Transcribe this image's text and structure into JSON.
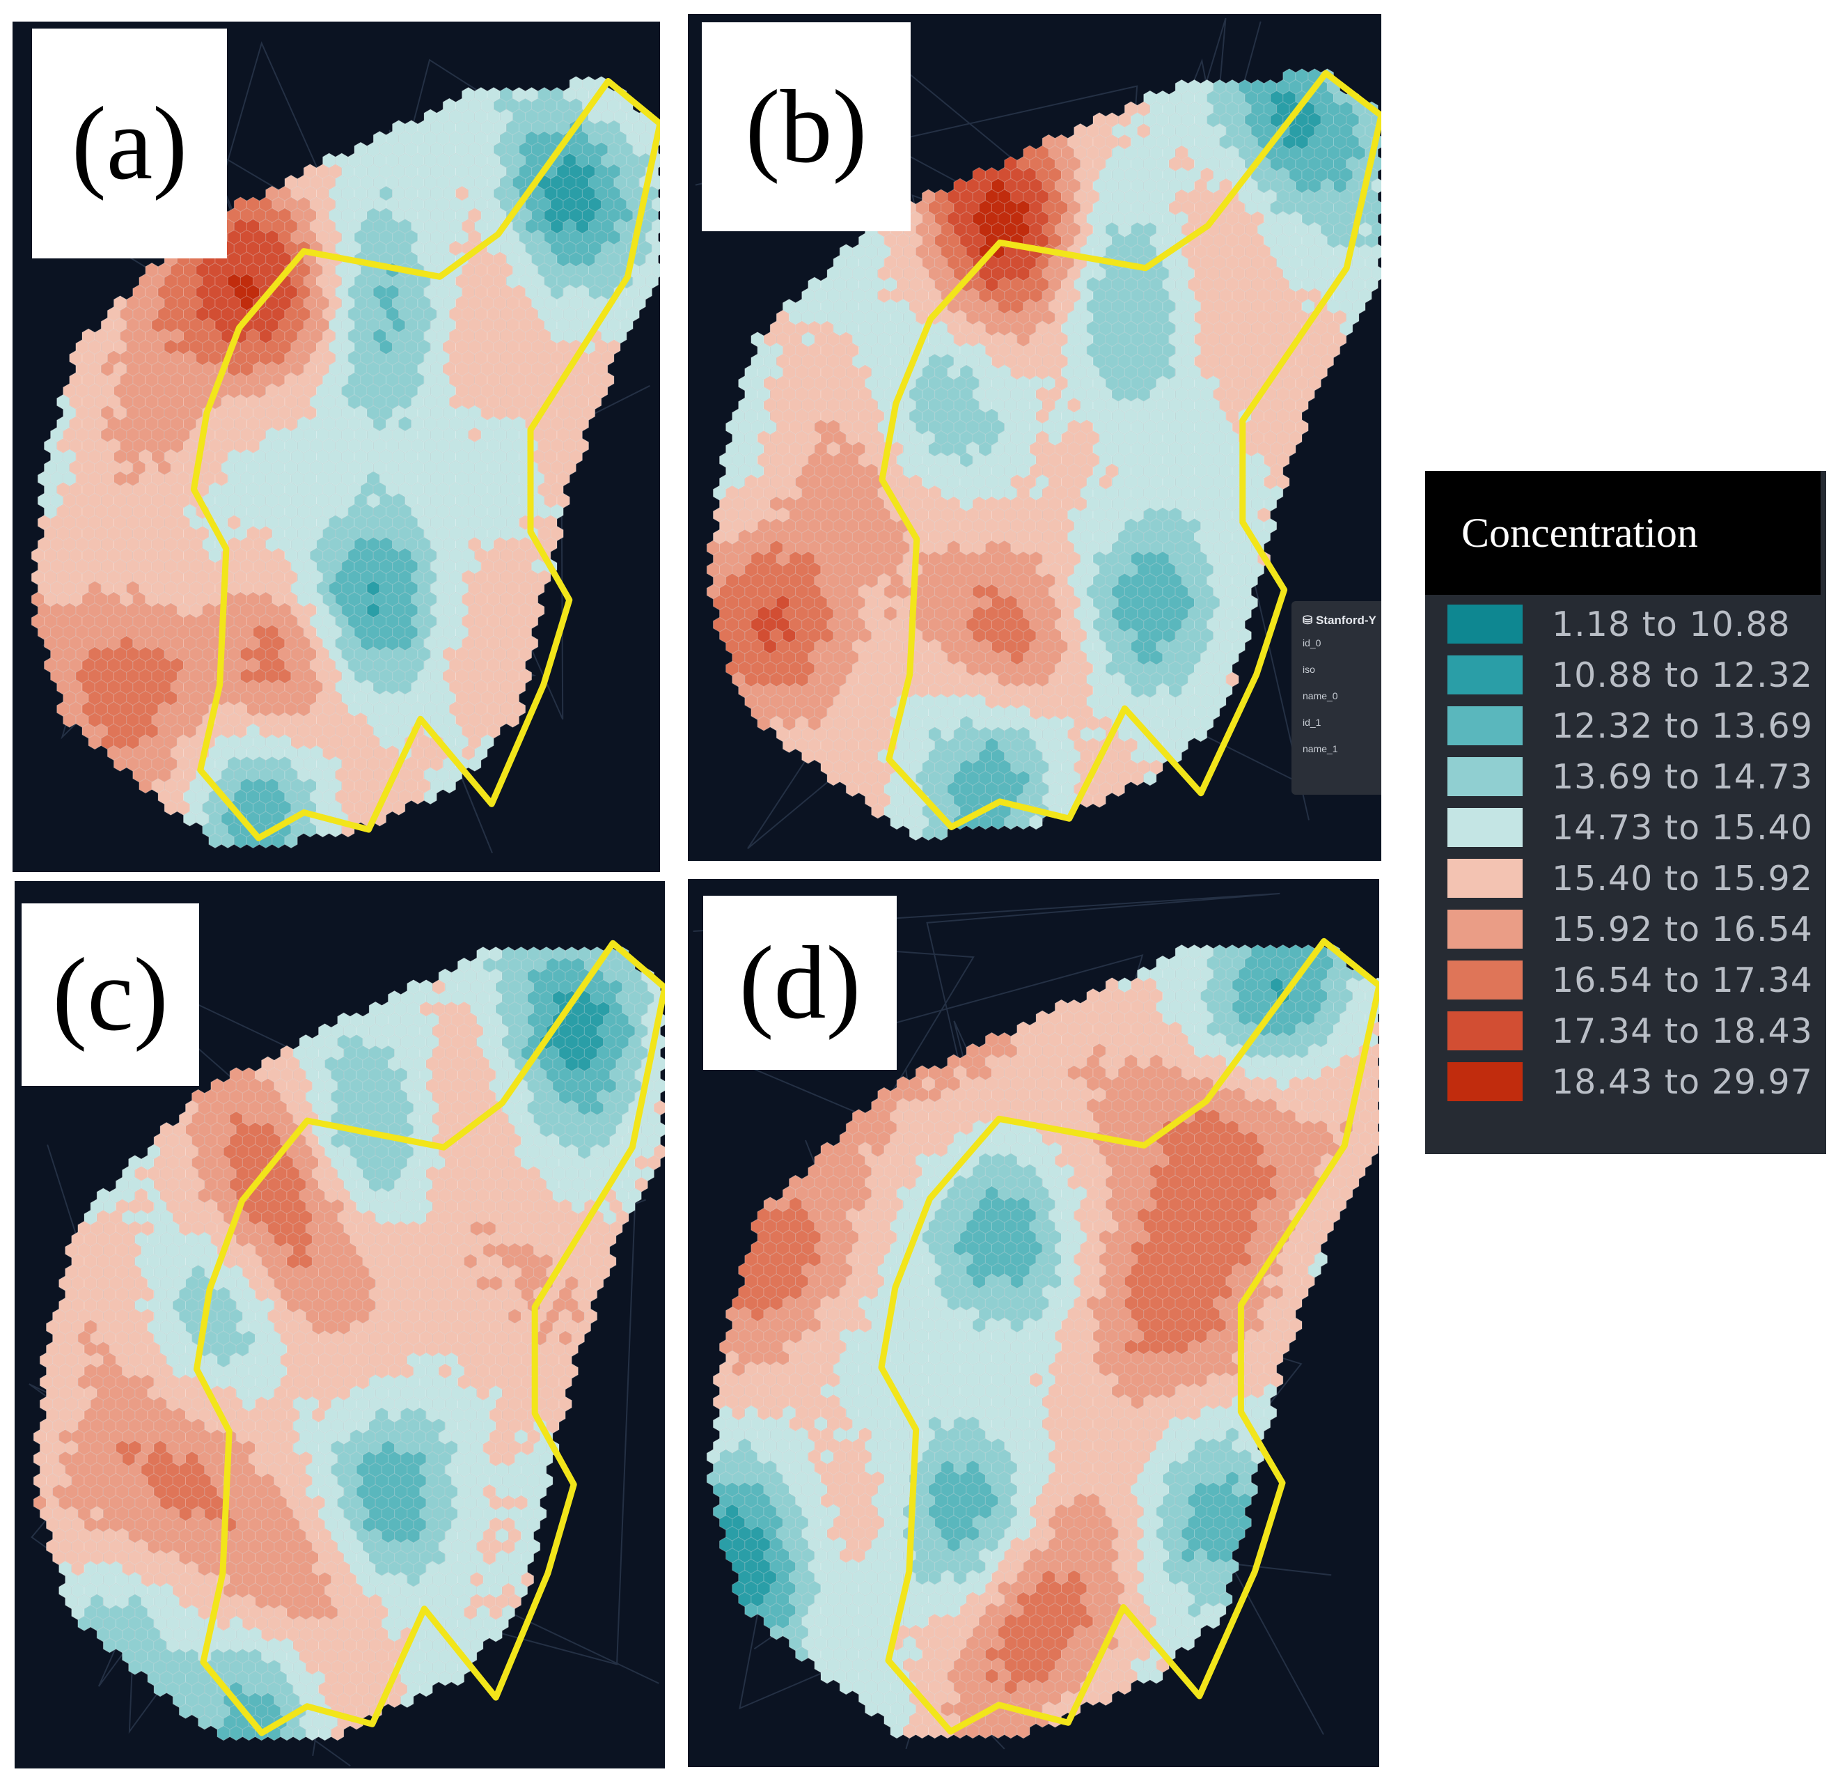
{
  "panels": [
    {
      "label": "(a)",
      "seed": 11,
      "hot": [
        [
          0.4,
          0.33,
          1
        ],
        [
          0.18,
          0.77,
          1
        ],
        [
          0.44,
          0.78,
          0.8
        ],
        [
          0.7,
          0.4,
          0.5
        ],
        [
          0.3,
          0.55,
          0.6
        ],
        [
          0.25,
          0.3,
          0.6
        ]
      ],
      "cold": [
        [
          0.84,
          0.2,
          1
        ],
        [
          0.3,
          0.58,
          0.6
        ],
        [
          0.55,
          0.68,
          0.9
        ],
        [
          0.4,
          0.9,
          0.8
        ],
        [
          0.59,
          0.35,
          0.7
        ],
        [
          0.56,
          0.46,
          0.5
        ]
      ]
    },
    {
      "label": "(b)",
      "seed": 23,
      "hot": [
        [
          0.5,
          0.28,
          1
        ],
        [
          0.15,
          0.72,
          1
        ],
        [
          0.5,
          0.75,
          0.8
        ],
        [
          0.75,
          0.42,
          0.5
        ],
        [
          0.45,
          0.2,
          0.6
        ],
        [
          0.3,
          0.55,
          0.5
        ]
      ],
      "cold": [
        [
          0.88,
          0.12,
          1
        ],
        [
          0.33,
          0.48,
          0.6
        ],
        [
          0.68,
          0.7,
          0.9
        ],
        [
          0.45,
          0.88,
          0.8
        ],
        [
          0.65,
          0.42,
          0.7
        ],
        [
          0.6,
          0.3,
          0.6
        ]
      ]
    },
    {
      "label": "(c)",
      "seed": 37,
      "hot": [
        [
          0.42,
          0.35,
          1
        ],
        [
          0.15,
          0.72,
          0.7
        ],
        [
          0.45,
          0.8,
          0.8
        ],
        [
          0.7,
          0.45,
          0.5
        ],
        [
          0.25,
          0.6,
          0.6
        ]
      ],
      "cold": [
        [
          0.86,
          0.15,
          1
        ],
        [
          0.15,
          0.85,
          0.7
        ],
        [
          0.6,
          0.7,
          0.9
        ],
        [
          0.4,
          0.92,
          0.8
        ],
        [
          0.54,
          0.3,
          0.7
        ],
        [
          0.28,
          0.52,
          0.6
        ]
      ]
    },
    {
      "label": "(d)",
      "seed": 51,
      "hot": [
        [
          0.78,
          0.3,
          1
        ],
        [
          0.65,
          0.48,
          0.9
        ],
        [
          0.5,
          0.83,
          0.9
        ],
        [
          0.15,
          0.42,
          0.8
        ],
        [
          0.4,
          0.2,
          0.6
        ]
      ],
      "cold": [
        [
          0.85,
          0.12,
          1
        ],
        [
          0.45,
          0.42,
          1
        ],
        [
          0.08,
          0.78,
          1
        ],
        [
          0.4,
          0.72,
          0.7
        ],
        [
          0.75,
          0.72,
          0.6
        ]
      ]
    }
  ],
  "popup": {
    "title": "⛁ Stanford-Y",
    "rows": [
      "id_0",
      "iso",
      "name_0",
      "id_1",
      "name_1"
    ]
  },
  "legend": {
    "title": "Concentration",
    "items": [
      {
        "range": "1.18 to 10.88",
        "color": "#0e8791"
      },
      {
        "range": "10.88 to 12.32",
        "color": "#2a9ea7"
      },
      {
        "range": "12.32 to 13.69",
        "color": "#5ab7bd"
      },
      {
        "range": "13.69 to 14.73",
        "color": "#90cfd1"
      },
      {
        "range": "14.73 to 15.40",
        "color": "#c4e5e4"
      },
      {
        "range": "15.40 to 15.92",
        "color": "#f3c3b2"
      },
      {
        "range": "15.92 to 16.54",
        "color": "#ea9d86"
      },
      {
        "range": "16.54 to 17.34",
        "color": "#df7558"
      },
      {
        "range": "17.34 to 18.43",
        "color": "#d24e33"
      },
      {
        "range": "18.43 to 29.97",
        "color": "#c12c0d"
      }
    ]
  }
}
